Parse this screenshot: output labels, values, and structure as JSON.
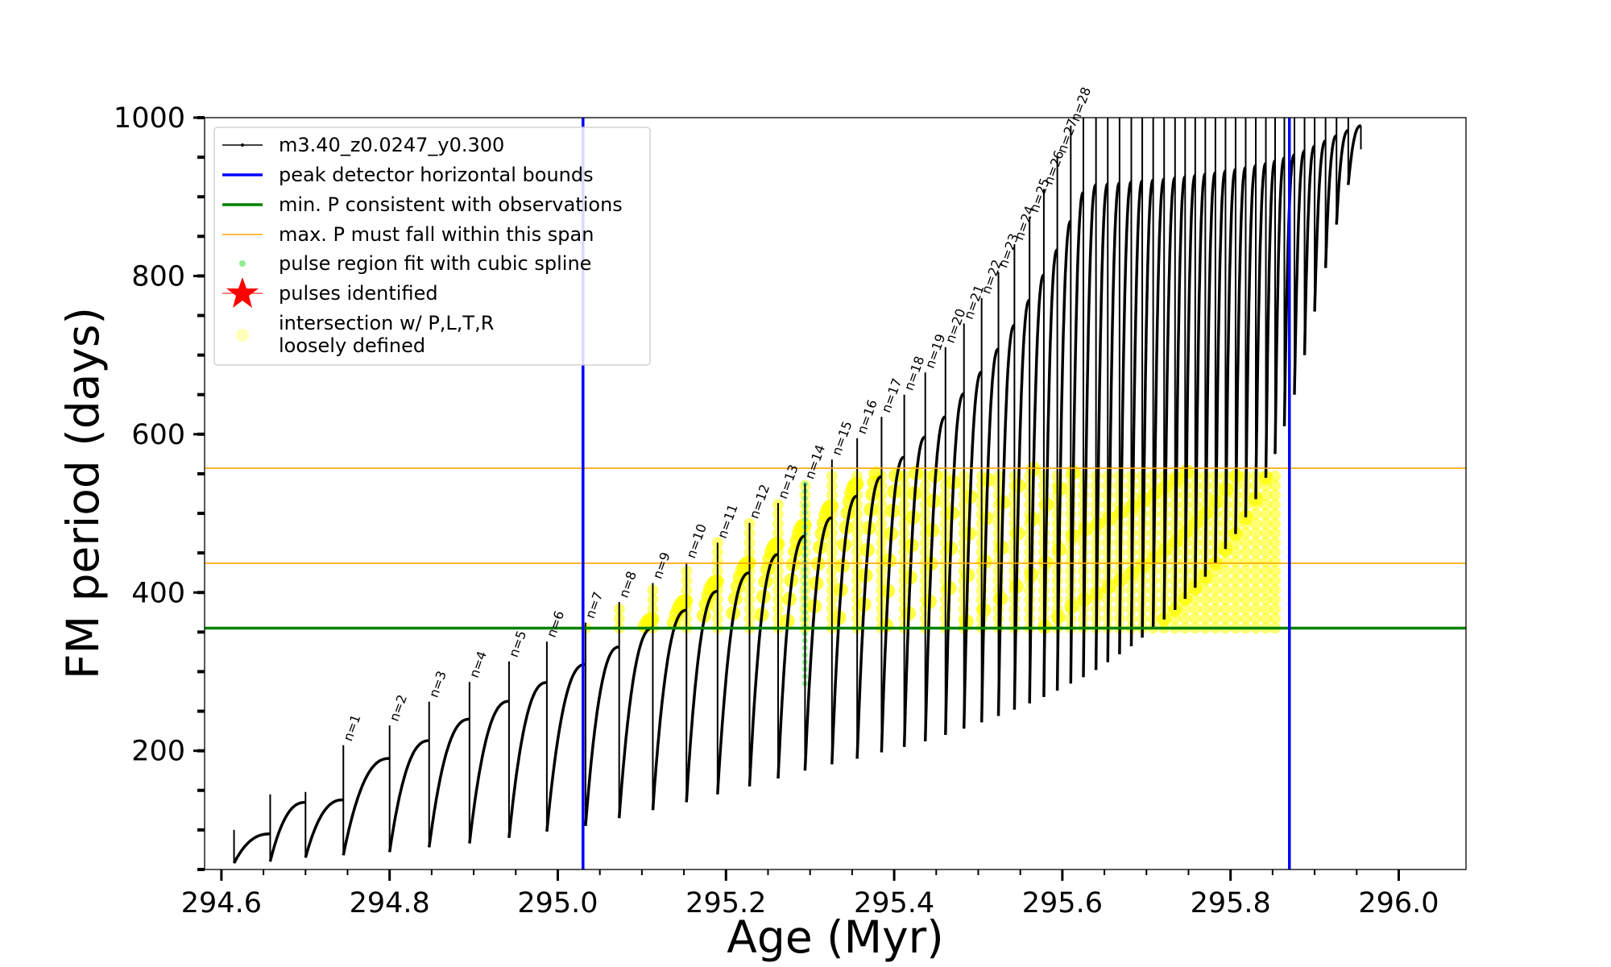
{
  "chart_data": {
    "type": "line",
    "xlabel": "Age (Myr)",
    "ylabel": "FM period (days)",
    "xlim": [
      294.58,
      296.08
    ],
    "ylim": [
      50,
      1000
    ],
    "x_ticks": [
      "294.6",
      "294.8",
      "295.0",
      "295.2",
      "295.4",
      "295.6",
      "295.8",
      "296.0"
    ],
    "x_tick_values": [
      294.6,
      294.8,
      295.0,
      295.2,
      295.4,
      295.6,
      295.8,
      296.0
    ],
    "y_ticks": [
      "200",
      "400",
      "600",
      "800",
      "1000"
    ],
    "y_tick_values": [
      200,
      400,
      600,
      800,
      1000
    ],
    "legend_position": "upper-left",
    "legend": {
      "track": "m3.40_z0.0247_y0.300",
      "bounds": "peak detector horizontal bounds",
      "minp": "min. P consistent with observations",
      "maxp": "max. P must fall within this span",
      "spline": "pulse region fit with cubic spline",
      "pulses": "pulses identified",
      "intersect_line1": "intersection w/ P,L,T,R",
      "intersect_line2": "loosely defined"
    },
    "colors": {
      "track": "#000000",
      "bounds": "#0000ff",
      "minp": "#008000",
      "maxp": "#ffa500",
      "spline": "#90ee90",
      "pulses": "#ff0000",
      "intersect": "#ffff00"
    },
    "peak_detector_bounds": [
      295.03,
      295.87
    ],
    "min_period": 355,
    "max_period_span": [
      437,
      557
    ],
    "pulse_label_values": [
      "n=1",
      "n=2",
      "n=3",
      "n=4",
      "n=5",
      "n=6",
      "n=7",
      "n=8",
      "n=9",
      "n=10",
      "n=11",
      "n=12",
      "n=13",
      "n=14",
      "n=15",
      "n=16",
      "n=17",
      "n=18",
      "n=19",
      "n=20",
      "n=21",
      "n=22",
      "n=23",
      "n=24",
      "n=25",
      "n=26",
      "n=27",
      "n=28"
    ],
    "pulses": [
      {
        "t": 294.615,
        "lo": 58,
        "hi": 100
      },
      {
        "t": 294.658,
        "lo": 60,
        "hi": 145
      },
      {
        "t": 294.7,
        "lo": 65,
        "hi": 148
      },
      {
        "t": 294.745,
        "lo": 68,
        "hi": 207,
        "label": "n=1"
      },
      {
        "t": 294.8,
        "lo": 72,
        "hi": 232,
        "label": "n=2"
      },
      {
        "t": 294.847,
        "lo": 78,
        "hi": 262,
        "label": "n=3"
      },
      {
        "t": 294.895,
        "lo": 83,
        "hi": 287,
        "label": "n=4"
      },
      {
        "t": 294.942,
        "lo": 90,
        "hi": 313,
        "label": "n=5"
      },
      {
        "t": 294.987,
        "lo": 98,
        "hi": 338,
        "label": "n=6"
      },
      {
        "t": 295.033,
        "lo": 105,
        "hi": 362,
        "label": "n=7"
      },
      {
        "t": 295.073,
        "lo": 115,
        "hi": 388,
        "label": "n=8"
      },
      {
        "t": 295.113,
        "lo": 125,
        "hi": 412,
        "label": "n=9"
      },
      {
        "t": 295.153,
        "lo": 135,
        "hi": 438,
        "label": "n=10"
      },
      {
        "t": 295.19,
        "lo": 145,
        "hi": 463,
        "label": "n=11"
      },
      {
        "t": 295.228,
        "lo": 155,
        "hi": 488,
        "label": "n=12"
      },
      {
        "t": 295.262,
        "lo": 165,
        "hi": 513,
        "label": "n=13"
      },
      {
        "t": 295.294,
        "lo": 175,
        "hi": 538,
        "label": "n=14"
      },
      {
        "t": 295.326,
        "lo": 183,
        "hi": 568,
        "label": "n=15"
      },
      {
        "t": 295.356,
        "lo": 190,
        "hi": 595,
        "label": "n=16"
      },
      {
        "t": 295.385,
        "lo": 198,
        "hi": 622,
        "label": "n=17"
      },
      {
        "t": 295.412,
        "lo": 205,
        "hi": 650,
        "label": "n=18"
      },
      {
        "t": 295.437,
        "lo": 212,
        "hi": 678,
        "label": "n=19"
      },
      {
        "t": 295.461,
        "lo": 220,
        "hi": 710,
        "label": "n=20"
      },
      {
        "t": 295.483,
        "lo": 228,
        "hi": 740,
        "label": "n=21"
      },
      {
        "t": 295.504,
        "lo": 236,
        "hi": 772,
        "label": "n=22"
      },
      {
        "t": 295.524,
        "lo": 244,
        "hi": 805,
        "label": "n=23"
      },
      {
        "t": 295.543,
        "lo": 252,
        "hi": 840,
        "label": "n=24"
      },
      {
        "t": 295.561,
        "lo": 260,
        "hi": 875,
        "label": "n=25"
      },
      {
        "t": 295.578,
        "lo": 268,
        "hi": 910,
        "label": "n=26"
      },
      {
        "t": 295.594,
        "lo": 276,
        "hi": 950,
        "label": "n=27"
      },
      {
        "t": 295.61,
        "lo": 285,
        "hi": 990,
        "label": "n=28"
      },
      {
        "t": 295.625,
        "lo": 293,
        "hi": 1000
      },
      {
        "t": 295.64,
        "lo": 302,
        "hi": 1000
      },
      {
        "t": 295.654,
        "lo": 312,
        "hi": 1000
      },
      {
        "t": 295.668,
        "lo": 322,
        "hi": 1000
      },
      {
        "t": 295.682,
        "lo": 332,
        "hi": 1000
      },
      {
        "t": 295.695,
        "lo": 343,
        "hi": 1000
      },
      {
        "t": 295.708,
        "lo": 354,
        "hi": 1000
      },
      {
        "t": 295.721,
        "lo": 366,
        "hi": 1000
      },
      {
        "t": 295.734,
        "lo": 378,
        "hi": 1000
      },
      {
        "t": 295.746,
        "lo": 392,
        "hi": 1000
      },
      {
        "t": 295.758,
        "lo": 406,
        "hi": 1000
      },
      {
        "t": 295.77,
        "lo": 420,
        "hi": 1000
      },
      {
        "t": 295.782,
        "lo": 437,
        "hi": 1000
      },
      {
        "t": 295.794,
        "lo": 455,
        "hi": 1000
      },
      {
        "t": 295.806,
        "lo": 474,
        "hi": 1000
      },
      {
        "t": 295.818,
        "lo": 495,
        "hi": 1000
      },
      {
        "t": 295.83,
        "lo": 518,
        "hi": 1000
      },
      {
        "t": 295.842,
        "lo": 545,
        "hi": 1000
      },
      {
        "t": 295.853,
        "lo": 575,
        "hi": 1000
      },
      {
        "t": 295.864,
        "lo": 610,
        "hi": 1000
      },
      {
        "t": 295.876,
        "lo": 650,
        "hi": 1000
      },
      {
        "t": 295.888,
        "lo": 700,
        "hi": 1000
      },
      {
        "t": 295.9,
        "lo": 755,
        "hi": 1000
      },
      {
        "t": 295.913,
        "lo": 810,
        "hi": 1000
      },
      {
        "t": 295.926,
        "lo": 865,
        "hi": 1000
      },
      {
        "t": 295.94,
        "lo": 915,
        "hi": 1000
      },
      {
        "t": 295.955,
        "lo": 960,
        "hi": 990
      }
    ]
  }
}
